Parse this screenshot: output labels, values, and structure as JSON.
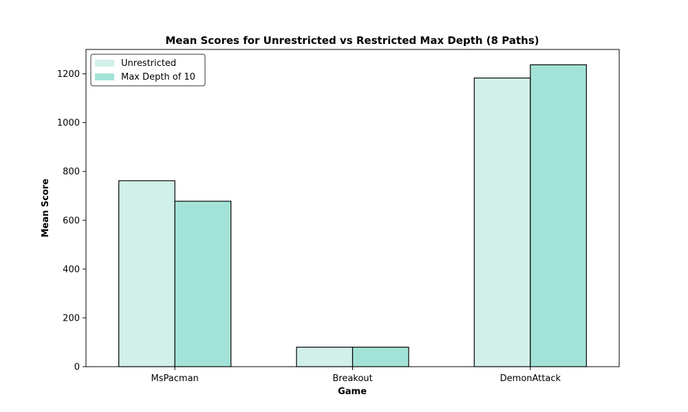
{
  "chart_data": {
    "type": "bar",
    "title": "Mean Scores for Unrestricted vs Restricted Max Depth (8 Paths)",
    "xlabel": "Game",
    "ylabel": "Mean Score",
    "categories": [
      "MsPacman",
      "Breakout",
      "DemonAttack"
    ],
    "series": [
      {
        "name": "Unrestricted",
        "color": "#d0f0e9",
        "values": [
          762,
          80,
          1183
        ]
      },
      {
        "name": "Max Depth of 10",
        "color": "#a3e3d7",
        "values": [
          678,
          80,
          1237
        ]
      }
    ],
    "ylim": [
      0,
      1300
    ],
    "yticks": [
      0,
      200,
      400,
      600,
      800,
      1000,
      1200
    ],
    "grid": false,
    "legend_position": "top-left",
    "edge_color": "#000000"
  }
}
